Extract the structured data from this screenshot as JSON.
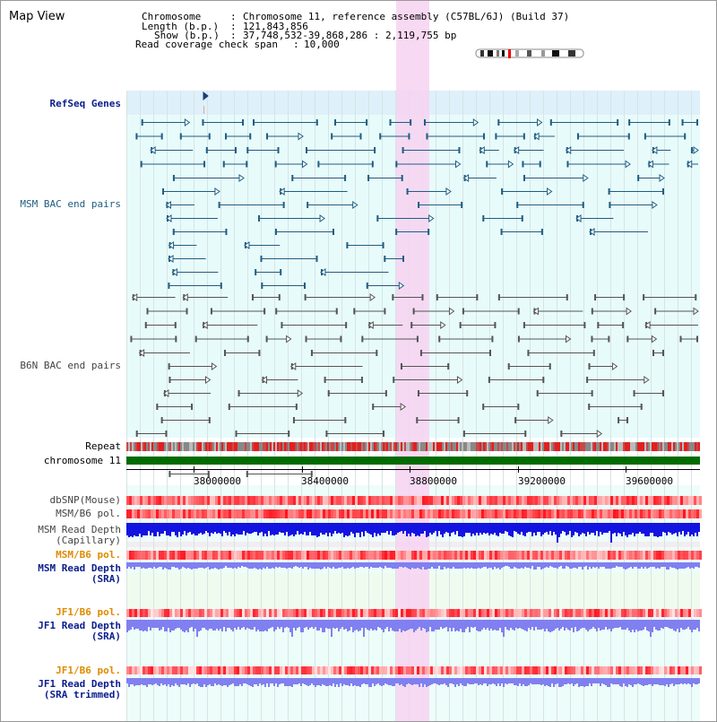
{
  "window": {
    "title": "Map View"
  },
  "header": {
    "chromosome_key": "Chromosome",
    "chromosome_value": "Chromosome 11, reference assembly (C57BL/6J) (Build 37)",
    "length_key": "Length (b.p.)",
    "length_value": "121,843,856",
    "show_key": "Show (b.p.)",
    "show_value": "37,748,532-39,868,286 : 2,119,755 bp",
    "coverage_key": "Read coverage check span",
    "coverage_value": "10,000"
  },
  "tracks": {
    "refseq": "RefSeq Genes",
    "msm_bac": "MSM BAC end pairs",
    "b6n_bac": "B6N BAC end pairs",
    "repeat": "Repeat",
    "chromosome": "chromosome 11",
    "dbsnp": "dbSNP(Mouse)",
    "msm_b6_pol_1": "MSM/B6 pol.",
    "msm_depth_cap_1": "MSM Read Depth",
    "msm_depth_cap_2": "(Capillary)",
    "msm_b6_pol_2": "MSM/B6 pol.",
    "msm_depth_sra_1": "MSM Read Depth",
    "msm_depth_sra_2": "(SRA)",
    "jf1_b6_pol_1": "JF1/B6 pol.",
    "jf1_depth_sra_1": "JF1 Read Depth",
    "jf1_depth_sra_2": "(SRA)",
    "jf1_b6_pol_2": "JF1/B6 pol.",
    "jf1_depth_trim_1": "JF1 Read Depth",
    "jf1_depth_trim_2": "(SRA trimmed)"
  },
  "axis": {
    "ticks": [
      "38000000",
      "38400000",
      "38800000",
      "39200000",
      "39600000"
    ]
  },
  "colors": {
    "refseq_bg": "#def0fa",
    "msm_bg": "#e8fbfb",
    "highlight": "#f7d2f1",
    "feature_teal": "#1f5e82",
    "feature_gray": "#555555",
    "chromosome_bar": "#006b00",
    "depth_blue": "#1414e0",
    "depth_light": "#8080f0"
  }
}
